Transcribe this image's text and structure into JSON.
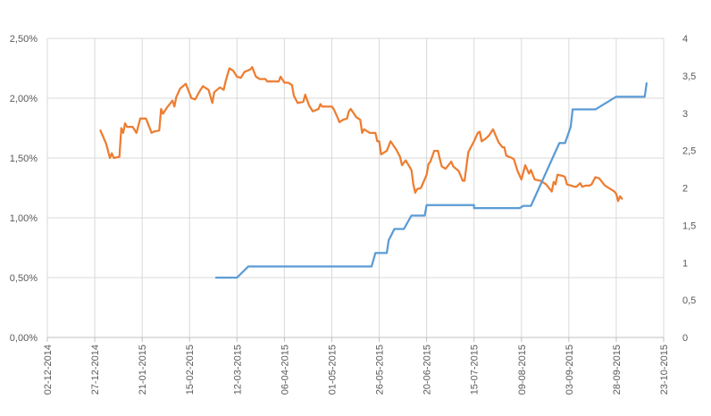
{
  "chart_data": {
    "type": "line",
    "title": "",
    "xlabel": "",
    "ylabel": "",
    "grid": true,
    "legend": "none",
    "x_axis": {
      "ticks": [
        "02-12-2014",
        "27-12-2014",
        "21-01-2015",
        "15-02-2015",
        "12-03-2015",
        "06-04-2015",
        "01-05-2015",
        "26-05-2015",
        "20-06-2015",
        "15-07-2015",
        "09-08-2015",
        "03-09-2015",
        "28-09-2015",
        "23-10-2015"
      ],
      "range": [
        "2014-12-02",
        "2015-10-23"
      ]
    },
    "y_left": {
      "ticks": [
        "0,00%",
        "0,50%",
        "1,00%",
        "1,50%",
        "2,00%",
        "2,50%"
      ],
      "range": [
        0,
        2.5
      ],
      "unit": "%"
    },
    "y_right": {
      "ticks": [
        "0",
        "0,5",
        "1",
        "1,5",
        "2",
        "2,5",
        "3",
        "3,5",
        "4"
      ],
      "range": [
        0,
        4
      ]
    },
    "series": [
      {
        "axis": "left",
        "color": "#ED7D31",
        "points": [
          [
            "2014-12-30",
            1.73
          ],
          [
            "2015-01-02",
            1.62
          ],
          [
            "2015-01-04",
            1.5
          ],
          [
            "2015-01-05",
            1.54
          ],
          [
            "2015-01-06",
            1.5
          ],
          [
            "2015-01-09",
            1.51
          ],
          [
            "2015-01-10",
            1.75
          ],
          [
            "2015-01-11",
            1.71
          ],
          [
            "2015-01-12",
            1.79
          ],
          [
            "2015-01-13",
            1.76
          ],
          [
            "2015-01-16",
            1.76
          ],
          [
            "2015-01-18",
            1.71
          ],
          [
            "2015-01-20",
            1.83
          ],
          [
            "2015-01-23",
            1.83
          ],
          [
            "2015-01-26",
            1.71
          ],
          [
            "2015-01-27",
            1.72
          ],
          [
            "2015-01-30",
            1.73
          ],
          [
            "2015-01-31",
            1.91
          ],
          [
            "2015-02-01",
            1.87
          ],
          [
            "2015-02-03",
            1.92
          ],
          [
            "2015-02-06",
            1.98
          ],
          [
            "2015-02-07",
            1.93
          ],
          [
            "2015-02-08",
            2.01
          ],
          [
            "2015-02-10",
            2.08
          ],
          [
            "2015-02-13",
            2.12
          ],
          [
            "2015-02-15",
            2.04
          ],
          [
            "2015-02-16",
            2.0
          ],
          [
            "2015-02-18",
            1.99
          ],
          [
            "2015-02-20",
            2.05
          ],
          [
            "2015-02-22",
            2.1
          ],
          [
            "2015-02-25",
            2.07
          ],
          [
            "2015-02-27",
            1.96
          ],
          [
            "2015-02-28",
            2.05
          ],
          [
            "2015-03-03",
            2.09
          ],
          [
            "2015-03-05",
            2.07
          ],
          [
            "2015-03-06",
            2.14
          ],
          [
            "2015-03-08",
            2.25
          ],
          [
            "2015-03-10",
            2.23
          ],
          [
            "2015-03-12",
            2.18
          ],
          [
            "2015-03-14",
            2.17
          ],
          [
            "2015-03-16",
            2.22
          ],
          [
            "2015-03-19",
            2.24
          ],
          [
            "2015-03-20",
            2.26
          ],
          [
            "2015-03-22",
            2.18
          ],
          [
            "2015-03-24",
            2.16
          ],
          [
            "2015-03-27",
            2.16
          ],
          [
            "2015-03-28",
            2.14
          ],
          [
            "2015-03-30",
            2.14
          ],
          [
            "2015-04-01",
            2.14
          ],
          [
            "2015-04-03",
            2.14
          ],
          [
            "2015-04-04",
            2.18
          ],
          [
            "2015-04-06",
            2.13
          ],
          [
            "2015-04-08",
            2.13
          ],
          [
            "2015-04-10",
            2.11
          ],
          [
            "2015-04-11",
            2.02
          ],
          [
            "2015-04-13",
            1.96
          ],
          [
            "2015-04-16",
            1.97
          ],
          [
            "2015-04-17",
            2.03
          ],
          [
            "2015-04-19",
            1.94
          ],
          [
            "2015-04-21",
            1.89
          ],
          [
            "2015-04-24",
            1.91
          ],
          [
            "2015-04-25",
            1.95
          ],
          [
            "2015-04-26",
            1.93
          ],
          [
            "2015-04-28",
            1.93
          ],
          [
            "2015-05-01",
            1.93
          ],
          [
            "2015-05-02",
            1.91
          ],
          [
            "2015-05-04",
            1.84
          ],
          [
            "2015-05-05",
            1.8
          ],
          [
            "2015-05-07",
            1.82
          ],
          [
            "2015-05-09",
            1.83
          ],
          [
            "2015-05-10",
            1.89
          ],
          [
            "2015-05-11",
            1.91
          ],
          [
            "2015-05-14",
            1.84
          ],
          [
            "2015-05-16",
            1.82
          ],
          [
            "2015-05-17",
            1.71
          ],
          [
            "2015-05-18",
            1.74
          ],
          [
            "2015-05-21",
            1.71
          ],
          [
            "2015-05-24",
            1.71
          ],
          [
            "2015-05-25",
            1.64
          ],
          [
            "2015-05-26",
            1.64
          ],
          [
            "2015-05-27",
            1.53
          ],
          [
            "2015-05-30",
            1.56
          ],
          [
            "2015-06-01",
            1.64
          ],
          [
            "2015-06-04",
            1.57
          ],
          [
            "2015-06-06",
            1.51
          ],
          [
            "2015-06-07",
            1.44
          ],
          [
            "2015-06-09",
            1.48
          ],
          [
            "2015-06-12",
            1.4
          ],
          [
            "2015-06-13",
            1.28
          ],
          [
            "2015-06-14",
            1.21
          ],
          [
            "2015-06-15",
            1.24
          ],
          [
            "2015-06-17",
            1.25
          ],
          [
            "2015-06-20",
            1.36
          ],
          [
            "2015-06-21",
            1.45
          ],
          [
            "2015-06-22",
            1.47
          ],
          [
            "2015-06-24",
            1.56
          ],
          [
            "2015-06-26",
            1.56
          ],
          [
            "2015-06-27",
            1.49
          ],
          [
            "2015-06-28",
            1.43
          ],
          [
            "2015-06-30",
            1.41
          ],
          [
            "2015-07-03",
            1.47
          ],
          [
            "2015-07-04",
            1.43
          ],
          [
            "2015-07-07",
            1.39
          ],
          [
            "2015-07-09",
            1.31
          ],
          [
            "2015-07-10",
            1.31
          ],
          [
            "2015-07-12",
            1.55
          ],
          [
            "2015-07-15",
            1.64
          ],
          [
            "2015-07-17",
            1.71
          ],
          [
            "2015-07-18",
            1.72
          ],
          [
            "2015-07-19",
            1.64
          ],
          [
            "2015-07-21",
            1.66
          ],
          [
            "2015-07-23",
            1.69
          ],
          [
            "2015-07-25",
            1.74
          ],
          [
            "2015-07-28",
            1.63
          ],
          [
            "2015-07-30",
            1.59
          ],
          [
            "2015-07-31",
            1.59
          ],
          [
            "2015-08-01",
            1.52
          ],
          [
            "2015-08-04",
            1.5
          ],
          [
            "2015-08-05",
            1.49
          ],
          [
            "2015-08-07",
            1.39
          ],
          [
            "2015-08-09",
            1.32
          ],
          [
            "2015-08-11",
            1.44
          ],
          [
            "2015-08-13",
            1.37
          ],
          [
            "2015-08-14",
            1.4
          ],
          [
            "2015-08-16",
            1.32
          ],
          [
            "2015-08-19",
            1.31
          ],
          [
            "2015-08-20",
            1.3
          ],
          [
            "2015-08-22",
            1.28
          ],
          [
            "2015-08-25",
            1.22
          ],
          [
            "2015-08-26",
            1.3
          ],
          [
            "2015-08-27",
            1.28
          ],
          [
            "2015-08-28",
            1.36
          ],
          [
            "2015-08-31",
            1.35
          ],
          [
            "2015-09-01",
            1.34
          ],
          [
            "2015-09-02",
            1.28
          ],
          [
            "2015-09-04",
            1.27
          ],
          [
            "2015-09-06",
            1.26
          ],
          [
            "2015-09-07",
            1.26
          ],
          [
            "2015-09-09",
            1.29
          ],
          [
            "2015-09-10",
            1.26
          ],
          [
            "2015-09-12",
            1.27
          ],
          [
            "2015-09-14",
            1.27
          ],
          [
            "2015-09-15",
            1.28
          ],
          [
            "2015-09-17",
            1.34
          ],
          [
            "2015-09-19",
            1.33
          ],
          [
            "2015-09-20",
            1.31
          ],
          [
            "2015-09-22",
            1.27
          ],
          [
            "2015-09-25",
            1.24
          ],
          [
            "2015-09-27",
            1.22
          ],
          [
            "2015-09-28",
            1.2
          ],
          [
            "2015-09-29",
            1.14
          ],
          [
            "2015-09-30",
            1.18
          ],
          [
            "2015-10-01",
            1.16
          ]
        ]
      },
      {
        "axis": "right",
        "color": "#5B9BD5",
        "points": [
          [
            "2015-03-01",
            0.8
          ],
          [
            "2015-03-12",
            0.8
          ],
          [
            "2015-03-18",
            0.95
          ],
          [
            "2015-05-22",
            0.95
          ],
          [
            "2015-05-24",
            1.13
          ],
          [
            "2015-05-30",
            1.13
          ],
          [
            "2015-05-31",
            1.3
          ],
          [
            "2015-06-03",
            1.45
          ],
          [
            "2015-06-08",
            1.45
          ],
          [
            "2015-06-12",
            1.63
          ],
          [
            "2015-06-19",
            1.63
          ],
          [
            "2015-06-20",
            1.77
          ],
          [
            "2015-07-15",
            1.77
          ],
          [
            "2015-07-15",
            1.73
          ],
          [
            "2015-08-08",
            1.73
          ],
          [
            "2015-08-10",
            1.76
          ],
          [
            "2015-08-14",
            1.76
          ],
          [
            "2015-08-29",
            2.6
          ],
          [
            "2015-09-01",
            2.6
          ],
          [
            "2015-09-04",
            2.82
          ],
          [
            "2015-09-05",
            3.05
          ],
          [
            "2015-09-17",
            3.05
          ],
          [
            "2015-09-28",
            3.22
          ],
          [
            "2015-10-13",
            3.22
          ],
          [
            "2015-10-14",
            3.4
          ]
        ]
      }
    ]
  }
}
